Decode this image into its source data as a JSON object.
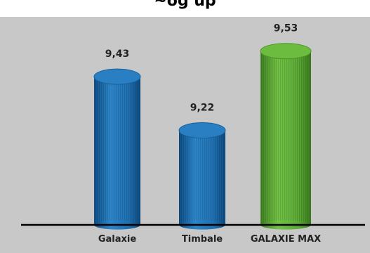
{
  "title_fragment": "~og up",
  "chart_data": {
    "type": "bar",
    "categories": [
      "Galaxie",
      "Timbale",
      "GALAXIE MAX"
    ],
    "values": [
      9.43,
      9.22,
      9.53
    ],
    "data_labels": [
      "9,43",
      "9,22",
      "9,53"
    ],
    "title": "",
    "xlabel": "",
    "ylabel": "",
    "ylim": [
      8.85,
      9.62
    ],
    "grid": false,
    "legend": "none",
    "colors": [
      "#1f6fb0",
      "#1f6fb0",
      "#57a532"
    ]
  }
}
